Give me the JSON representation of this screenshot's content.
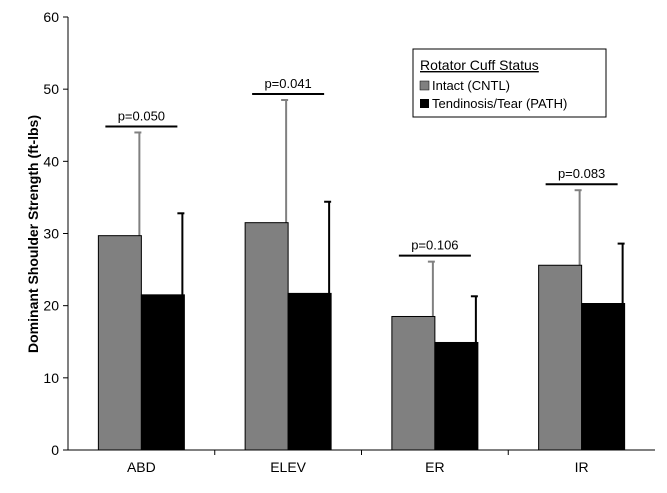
{
  "chart_data": {
    "type": "bar",
    "ylabel": "Dominant Shoulder Strength (ft-lbs)",
    "ylim": [
      0,
      60
    ],
    "yticks": [
      0,
      10,
      20,
      30,
      40,
      50,
      60
    ],
    "categories": [
      "ABD",
      "ELEV",
      "ER",
      "IR"
    ],
    "legend": {
      "title": "Rotator Cuff Status",
      "placement": "top-right"
    },
    "series": [
      {
        "name": "Intact (CNTL)",
        "color": "#808080",
        "values": [
          29.7,
          31.5,
          18.5,
          25.6
        ],
        "error": [
          14.3,
          17.0,
          7.6,
          10.4
        ]
      },
      {
        "name": "Tendinosis/Tear (PATH)",
        "color": "#000000",
        "values": [
          21.5,
          21.7,
          14.9,
          20.3
        ],
        "error": [
          11.3,
          12.7,
          6.4,
          8.3
        ]
      }
    ],
    "annotations": [
      "p=0.050",
      "p=0.041",
      "p=0.106",
      "p=0.083"
    ]
  }
}
